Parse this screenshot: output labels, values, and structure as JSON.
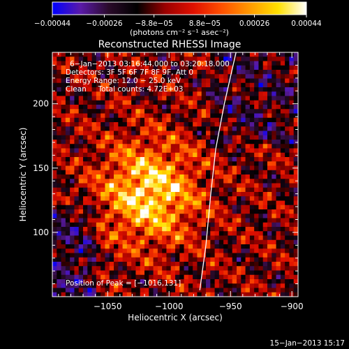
{
  "chart_data": {
    "type": "heatmap",
    "title": "Reconstructed RHESSI Image",
    "xlabel": "Heliocentric X (arcsec)",
    "ylabel": "Heliocentric Y (arcsec)",
    "xlim": [
      -1095,
      -895
    ],
    "ylim": [
      50,
      240
    ],
    "x_ticks": [
      -1050,
      -1000,
      -950,
      -900
    ],
    "x_tick_labels": [
      "−1050",
      "−1000",
      "−950",
      "−900"
    ],
    "y_ticks": [
      100,
      150,
      200
    ],
    "y_tick_labels": [
      "100",
      "150",
      "200"
    ],
    "colorbar": {
      "range": [
        -0.00044,
        0.00044
      ],
      "ticks": [
        -0.00044,
        -0.00026,
        -8.8e-05,
        8.8e-05,
        0.00026,
        0.00044
      ],
      "tick_labels": [
        "−0.00044",
        "−0.00026",
        "−8.8e−05",
        "8.8e−05",
        "0.00026",
        "0.00044"
      ],
      "units_label": "(photons cm⁻² s⁻¹ asec⁻²)",
      "colors": [
        "#0000ff",
        "#5a1aa8",
        "#2a0a2a",
        "#000000",
        "#9a0000",
        "#e01000",
        "#ff5000",
        "#ff9a00",
        "#ffe000",
        "#ffffff"
      ]
    },
    "annotations": [
      "6−Jan−2013 03:16:44.000 to 03:20:18.000",
      "Detectors: 3F 5F 6F 7F 8F 9F, Att 0",
      "Energy Range: 12.0 − 25.0 keV",
      "Clean     Total counts: 4.72E+03"
    ],
    "peak_label": "Position of Peak = [−1016,131]",
    "peak_position": [
      -1016,
      131
    ],
    "limb_curve": [
      [
        -975,
        55
      ],
      [
        -970,
        90
      ],
      [
        -966,
        130
      ],
      [
        -962,
        165
      ],
      [
        -955,
        200
      ],
      [
        -945,
        242
      ]
    ],
    "timestamp": "15−Jan−2013 15:17"
  }
}
